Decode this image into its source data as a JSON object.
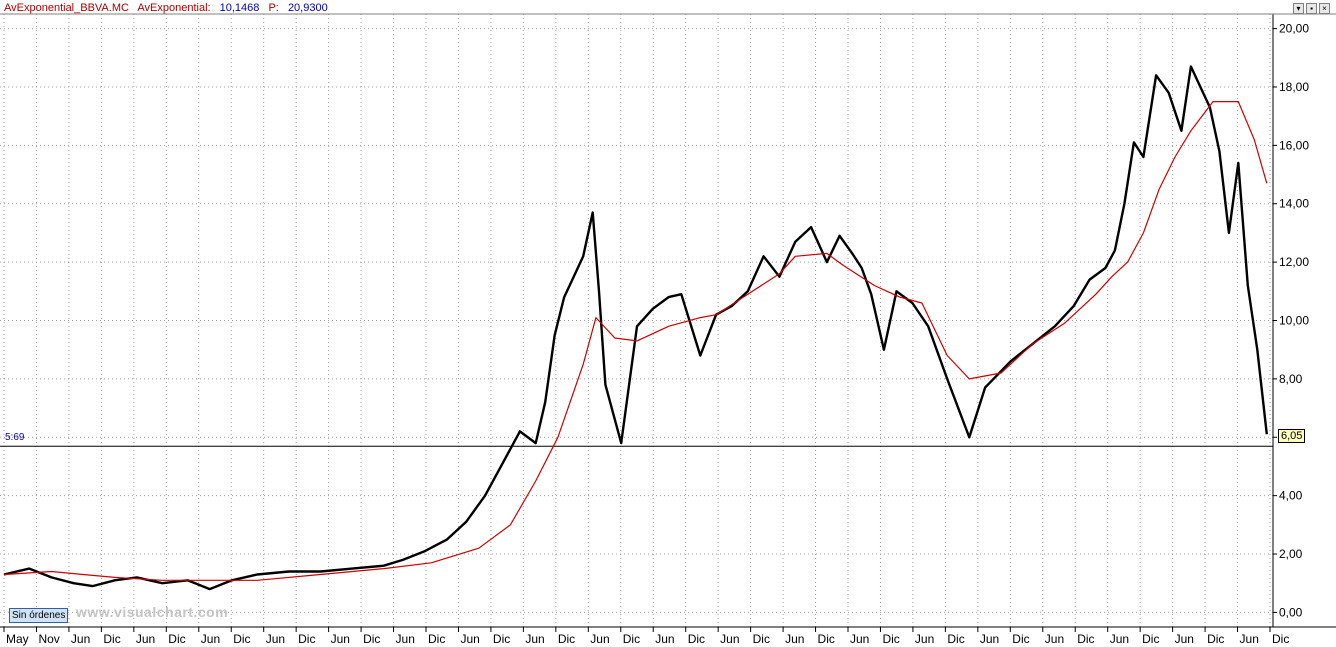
{
  "header": {
    "symbol": "AvExponential_BBVA.MC",
    "indicator_label": "AvExponential:",
    "indicator_value": "10,1468",
    "p_label": "P:",
    "p_value": "20,9300"
  },
  "window_buttons": [
    "▾",
    "▪",
    "×"
  ],
  "orders_label": "Sin órdenes",
  "watermark": "www.visualchart.com",
  "reference_line": {
    "label": "5:69",
    "value": 5.69
  },
  "last_price_tag": "6,05",
  "colors": {
    "price": "#000000",
    "ema": "#cc0000",
    "grid": "#a0a0a0",
    "ref_line": "#000000",
    "label_blue": "#0000c0"
  },
  "chart_data": {
    "type": "line",
    "title": "",
    "xlabel": "",
    "ylabel": "",
    "ylim": [
      -0.5,
      20.5
    ],
    "grid": true,
    "y_ticks": [
      {
        "value": 0,
        "label": "0,00"
      },
      {
        "value": 2,
        "label": "2,00"
      },
      {
        "value": 4,
        "label": "4,00"
      },
      {
        "value": 6,
        "label": ""
      },
      {
        "value": 8,
        "label": "8,00"
      },
      {
        "value": 10,
        "label": "10,00"
      },
      {
        "value": 12,
        "label": "12,00"
      },
      {
        "value": 14,
        "label": "14,00"
      },
      {
        "value": 16,
        "label": "16,00"
      },
      {
        "value": 18,
        "label": "18,00"
      },
      {
        "value": 20,
        "label": "20,00"
      }
    ],
    "x_ticks": [
      "May",
      "Nov",
      "Jun",
      "Dic",
      "Jun",
      "Dic",
      "Jun",
      "Dic",
      "Jun",
      "Dic",
      "Jun",
      "Dic",
      "Jun",
      "Dic",
      "Jun",
      "Dic",
      "Jun",
      "Dic",
      "Jun",
      "Dic",
      "Jun",
      "Dic",
      "Jun",
      "Dic",
      "Jun",
      "Dic",
      "Jun",
      "Dic",
      "Jun",
      "Dic",
      "Jun",
      "Dic",
      "Jun",
      "Dic",
      "Jun",
      "Dic",
      "Jun",
      "Dic",
      "Jun",
      "Dic"
    ],
    "x_range": [
      0,
      40
    ],
    "series": [
      {
        "role": "price",
        "x": [
          0,
          0.8,
          1.5,
          2.2,
          2.8,
          3.5,
          4.2,
          5,
          5.8,
          6.5,
          7.2,
          8,
          9,
          10,
          11,
          12,
          12.6,
          13.3,
          14,
          14.6,
          15.2,
          15.8,
          16.3,
          16.8,
          17.1,
          17.4,
          17.7,
          18.0,
          18.3,
          18.6,
          18.8,
          19.0,
          19.5,
          20,
          20.5,
          21,
          21.4,
          22,
          22.5,
          23,
          23.5,
          24,
          24.5,
          25,
          25.5,
          26,
          26.4,
          26.8,
          27.1,
          27.4,
          27.8,
          28.2,
          28.7,
          29.2,
          29.8,
          30.5,
          31,
          31.8,
          32.5,
          33.2,
          33.8,
          34.3,
          34.8,
          35.1,
          35.4,
          35.7,
          36,
          36.4,
          36.8,
          37.2,
          37.5,
          37.8,
          38.1,
          38.4,
          38.7,
          39,
          39.3,
          39.6,
          39.9
        ],
        "values": [
          1.3,
          1.5,
          1.2,
          1.0,
          0.9,
          1.1,
          1.2,
          1.0,
          1.1,
          0.8,
          1.1,
          1.3,
          1.4,
          1.4,
          1.5,
          1.6,
          1.8,
          2.1,
          2.5,
          3.1,
          4.0,
          5.2,
          6.2,
          5.8,
          7.2,
          9.5,
          10.8,
          11.5,
          12.2,
          13.7,
          11.0,
          7.8,
          5.8,
          9.8,
          10.4,
          10.8,
          10.9,
          8.8,
          10.2,
          10.5,
          11.0,
          12.2,
          11.5,
          12.7,
          13.2,
          12.0,
          12.9,
          12.3,
          11.8,
          10.9,
          9.0,
          11.0,
          10.6,
          9.8,
          8.0,
          6.0,
          7.7,
          8.6,
          9.2,
          9.8,
          10.5,
          11.4,
          11.8,
          12.4,
          14.0,
          16.1,
          15.6,
          18.4,
          17.8,
          16.5,
          18.7,
          18.0,
          17.3,
          15.8,
          13.0,
          15.4,
          11.2,
          9.0,
          6.1
        ]
      },
      {
        "role": "ema",
        "x": [
          0,
          1.5,
          2.5,
          3.5,
          5,
          6.5,
          8,
          10,
          12,
          13.5,
          15,
          16,
          16.8,
          17.5,
          18.3,
          18.7,
          19.3,
          20,
          21,
          22,
          22.5,
          23.5,
          24.5,
          25,
          26,
          26.5,
          27.5,
          28.3,
          29,
          29.8,
          30.5,
          31.5,
          32.5,
          33.5,
          34.5,
          35,
          35.5,
          36,
          36.5,
          37,
          37.5,
          38.2,
          39,
          39.5,
          39.9
        ],
        "values": [
          1.3,
          1.4,
          1.3,
          1.2,
          1.1,
          1.1,
          1.1,
          1.3,
          1.5,
          1.7,
          2.2,
          3.0,
          4.5,
          6.0,
          8.5,
          10.1,
          9.4,
          9.3,
          9.8,
          10.1,
          10.2,
          10.9,
          11.6,
          12.2,
          12.3,
          11.9,
          11.2,
          10.8,
          10.6,
          8.8,
          8.0,
          8.2,
          9.2,
          9.9,
          10.9,
          11.5,
          12.0,
          13.0,
          14.5,
          15.6,
          16.5,
          17.5,
          17.5,
          16.2,
          14.7
        ]
      }
    ]
  }
}
